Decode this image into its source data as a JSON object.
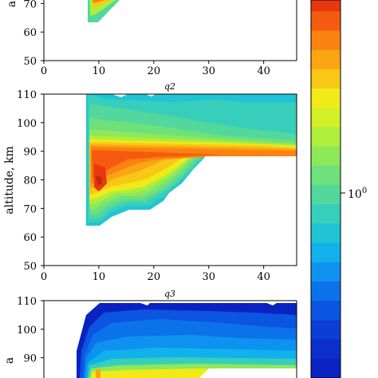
{
  "chart_data": [
    {
      "type": "contour",
      "panel": "q1",
      "title": "",
      "xlabel": "",
      "ylabel": "a",
      "xlim": [
        0,
        46
      ],
      "ylim": [
        50,
        110
      ],
      "xticks": [
        "0",
        "10",
        "20",
        "30",
        "40"
      ],
      "yticks": [
        "50",
        "60",
        "70"
      ],
      "visible_feature": "narrow yellow/orange wedge at x≈8–14 from altitude 64 up to top of visible region"
    },
    {
      "type": "contour",
      "panel": "q2",
      "title": "q2",
      "xlabel": "",
      "ylabel": "altitude, km",
      "xlim": [
        0,
        46
      ],
      "ylim": [
        50,
        110
      ],
      "xticks": [
        "0",
        "10",
        "20",
        "30",
        "40"
      ],
      "yticks": [
        "50",
        "60",
        "70",
        "80",
        "90",
        "100",
        "110"
      ],
      "data_region": {
        "x_min": 8,
        "lower_edge": [
          [
            8,
            64
          ],
          [
            10,
            64
          ],
          [
            13,
            70
          ],
          [
            15,
            75
          ],
          [
            20,
            75
          ],
          [
            22,
            78
          ],
          [
            25,
            82
          ],
          [
            28,
            86
          ],
          [
            30,
            88
          ],
          [
            46,
            88
          ]
        ],
        "peak": {
          "x": 10,
          "y": 80
        },
        "band_altitude": [
          80,
          91
        ]
      }
    },
    {
      "type": "contour",
      "panel": "q3",
      "title": "q3",
      "xlabel": "",
      "ylabel": "a",
      "xlim": [
        0,
        46
      ],
      "ylim": [
        70,
        110
      ],
      "xticks": [],
      "yticks": [
        "90",
        "100",
        "110"
      ],
      "visible_feature": "dark blue contours above 100 km, green/yellow band near 85–95 km"
    }
  ],
  "colorbar": {
    "scale": "log",
    "tick_label": "10",
    "tick_exponent": "0",
    "colors": [
      "#e8380d",
      "#f55b0f",
      "#fb8211",
      "#fba515",
      "#f9c816",
      "#f2ea18",
      "#d3ef28",
      "#b0ee3c",
      "#8de85a",
      "#6ee07c",
      "#52d89d",
      "#37cfbb",
      "#20c4d4",
      "#11b2ec",
      "#0e92f0",
      "#0c72ea",
      "#0b55e0",
      "#0a3ed6",
      "#0a2fcc",
      "#0a22c2"
    ]
  }
}
